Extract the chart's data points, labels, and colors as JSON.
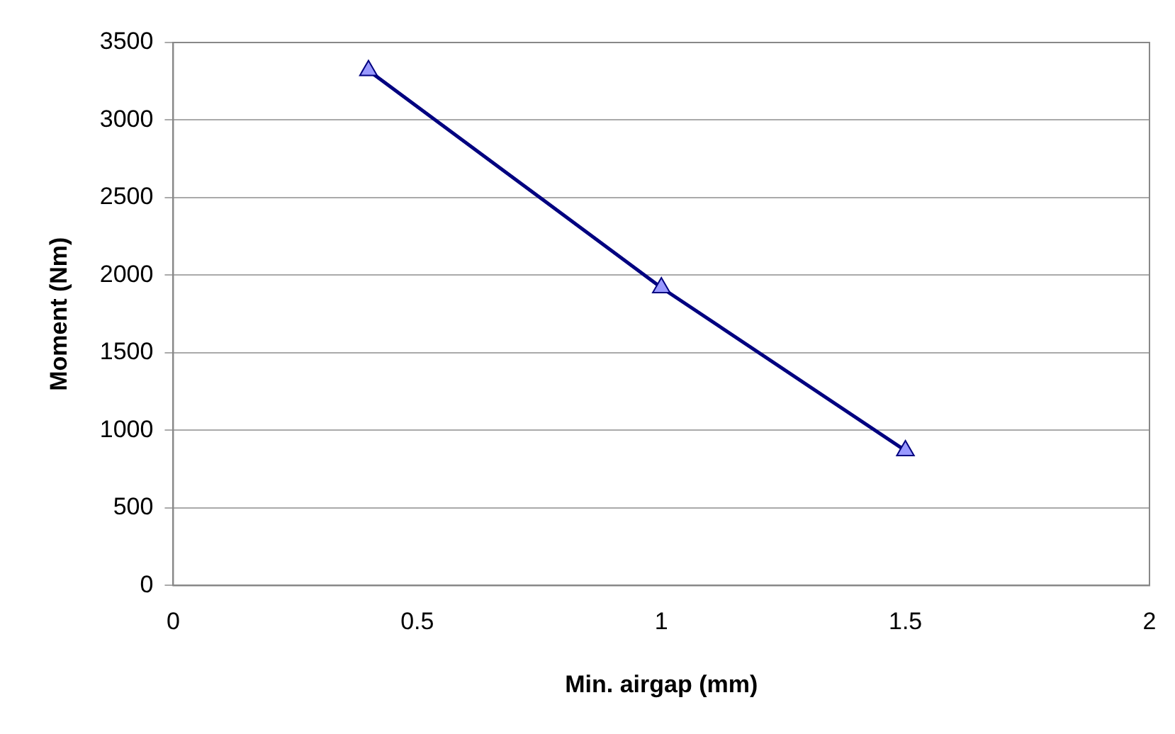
{
  "chart_data": {
    "type": "line",
    "xlabel": "Min. airgap (mm)",
    "ylabel": "Moment (Nm)",
    "x": [
      0.4,
      1,
      1.5
    ],
    "series": [
      {
        "color": "#000080",
        "values": [
          3320,
          1920,
          870
        ]
      }
    ],
    "xlim": [
      0,
      2
    ],
    "xticks": [
      0,
      0.5,
      1,
      1.5,
      2
    ],
    "ylim": [
      0,
      3500
    ],
    "yticks": [
      0,
      500,
      1000,
      1500,
      2000,
      2500,
      3000,
      3500
    ],
    "grid": "y",
    "legend": false,
    "marker": "triangle",
    "line_style": "solid"
  }
}
